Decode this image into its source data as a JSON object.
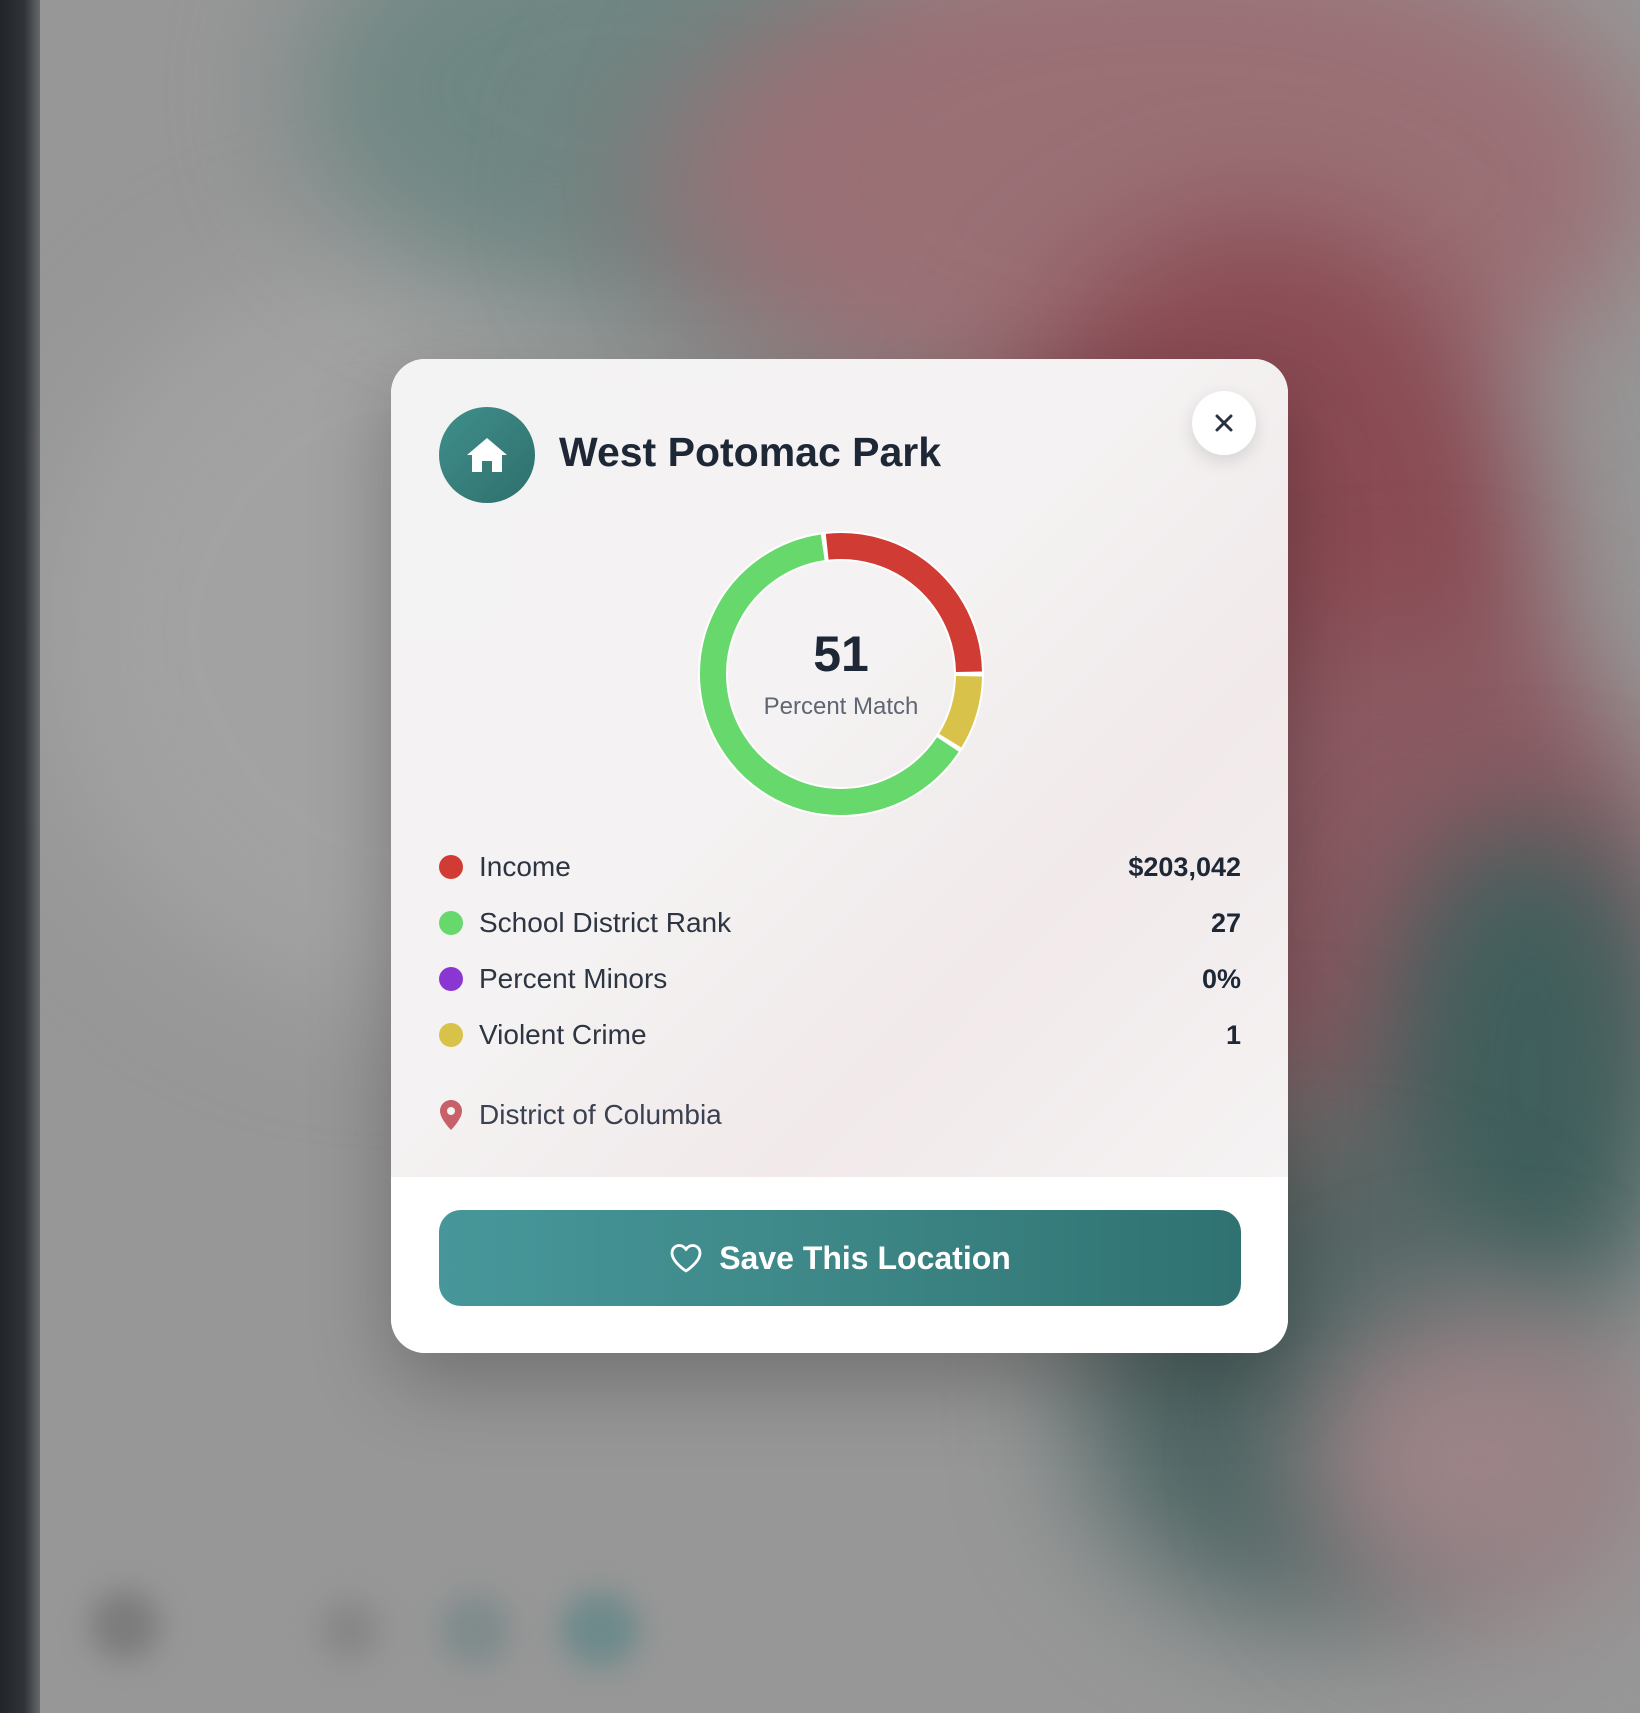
{
  "location": {
    "title": "West Potomac Park",
    "region": "District of Columbia"
  },
  "match": {
    "score": "51",
    "label": "Percent Match"
  },
  "chart_data": {
    "type": "pie",
    "segments": [
      {
        "name": "Income",
        "fraction": 0.27,
        "color": "#d03b33"
      },
      {
        "name": "Violent Crime",
        "fraction": 0.09,
        "color": "#d8c24a"
      },
      {
        "name": "School District Rank",
        "fraction": 0.64,
        "color": "#67d86b"
      }
    ]
  },
  "metrics": [
    {
      "label": "Income",
      "value": "$203,042",
      "color": "#d03b33"
    },
    {
      "label": "School District Rank",
      "value": "27",
      "color": "#67d86b"
    },
    {
      "label": "Percent Minors",
      "value": "0%",
      "color": "#8a36d3"
    },
    {
      "label": "Violent Crime",
      "value": "1",
      "color": "#d8c24a"
    }
  ],
  "actions": {
    "save_label": "Save This Location",
    "close_icon": "close-icon"
  },
  "colors": {
    "accent": "#3c8585",
    "pin": "#c8606a"
  },
  "icons": {
    "header": "home-icon",
    "location": "map-pin-icon",
    "save": "heart-icon"
  }
}
